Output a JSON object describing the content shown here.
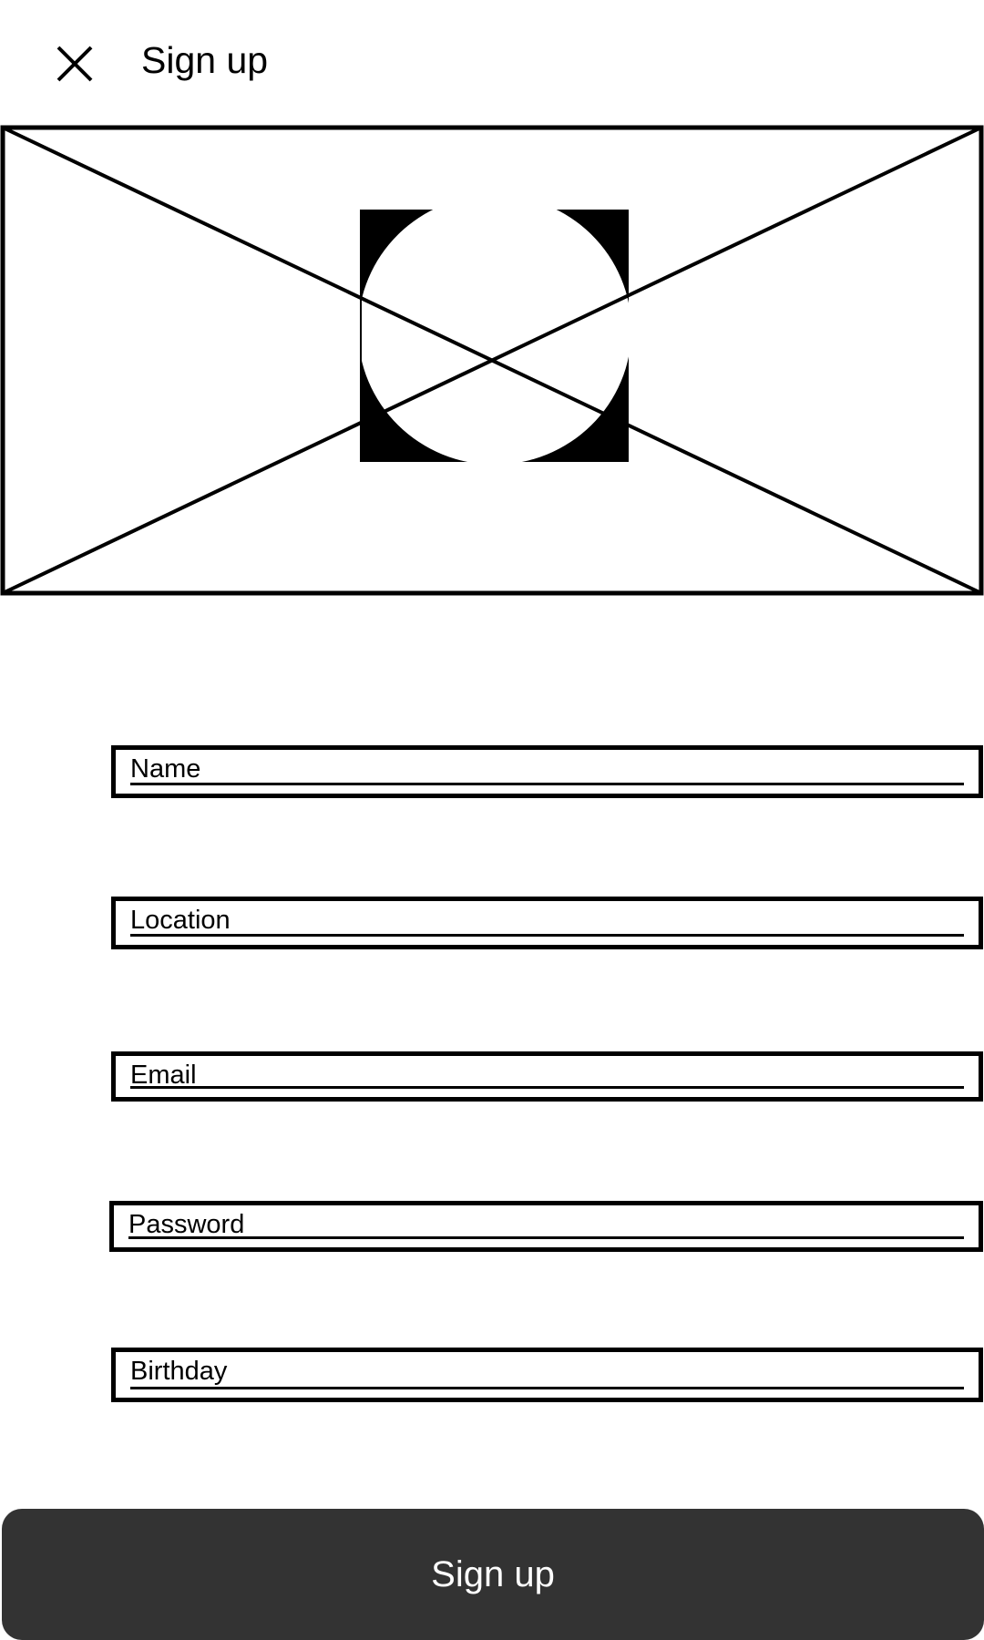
{
  "header": {
    "close_icon": "close-icon",
    "title": "Sign up"
  },
  "hero": {
    "type": "image-placeholder",
    "icon": "image-placeholder-icon"
  },
  "form": {
    "fields": [
      {
        "id": "name",
        "label": "Name",
        "value": ""
      },
      {
        "id": "location",
        "label": "Location",
        "value": ""
      },
      {
        "id": "email",
        "label": "Email",
        "value": ""
      },
      {
        "id": "password",
        "label": "Password",
        "value": ""
      },
      {
        "id": "birthday",
        "label": "Birthday",
        "value": ""
      }
    ]
  },
  "actions": {
    "submit_label": "Sign up"
  },
  "colors": {
    "button_background": "#333333",
    "button_text": "#ffffff",
    "outline": "#000000",
    "background": "#ffffff"
  }
}
